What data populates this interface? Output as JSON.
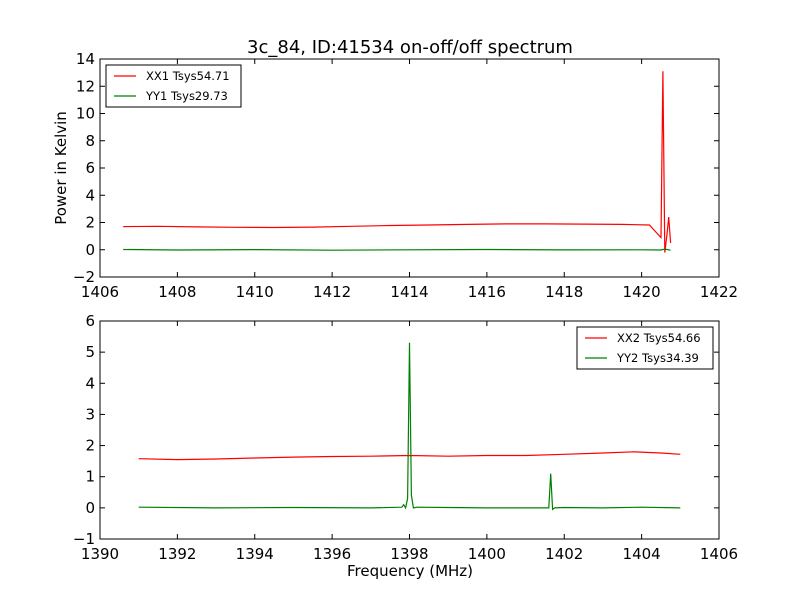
{
  "chart_data": [
    {
      "type": "line",
      "title": "3c_84, ID:41534 on-off/off spectrum",
      "xlabel": "",
      "ylabel": "Power in Kelvin",
      "xlim": [
        1406,
        1422
      ],
      "ylim": [
        -2,
        14
      ],
      "xticks": [
        1406,
        1408,
        1410,
        1412,
        1414,
        1416,
        1418,
        1420,
        1422
      ],
      "yticks": [
        -2,
        0,
        2,
        4,
        6,
        8,
        10,
        12,
        14
      ],
      "legend": "top-left",
      "grid": false,
      "series": [
        {
          "name": "XX1 Tsys54.71",
          "color": "#ff0000",
          "x": [
            1406.6,
            1407.5,
            1408.5,
            1409.5,
            1410.5,
            1411.5,
            1412.5,
            1413.5,
            1414.5,
            1415.5,
            1416.5,
            1417.5,
            1418.5,
            1419.5,
            1420.2,
            1420.4,
            1420.5,
            1420.55,
            1420.6,
            1420.65,
            1420.7,
            1420.75
          ],
          "y": [
            1.7,
            1.72,
            1.68,
            1.65,
            1.63,
            1.66,
            1.72,
            1.78,
            1.82,
            1.86,
            1.9,
            1.9,
            1.88,
            1.86,
            1.82,
            1.2,
            0.9,
            13.1,
            -0.2,
            1.0,
            2.4,
            0.5
          ]
        },
        {
          "name": "YY1 Tsys29.73",
          "color": "#008000",
          "x": [
            1406.6,
            1408,
            1410,
            1412,
            1414,
            1416,
            1418,
            1420,
            1420.5,
            1420.6,
            1420.75
          ],
          "y": [
            0.02,
            -0.02,
            0.01,
            -0.03,
            0.0,
            0.02,
            -0.01,
            0.0,
            -0.02,
            0.05,
            -0.03
          ]
        }
      ]
    },
    {
      "type": "line",
      "title": "",
      "xlabel": "Frequency (MHz)",
      "ylabel": "",
      "xlim": [
        1390,
        1406
      ],
      "ylim": [
        -1,
        6
      ],
      "xticks": [
        1390,
        1392,
        1394,
        1396,
        1398,
        1400,
        1402,
        1404,
        1406
      ],
      "yticks": [
        -1,
        0,
        1,
        2,
        3,
        4,
        5,
        6
      ],
      "legend": "top-right",
      "grid": false,
      "series": [
        {
          "name": "XX2 Tsys54.66",
          "color": "#ff0000",
          "x": [
            1391.0,
            1392.0,
            1393.0,
            1394.0,
            1395.0,
            1396.0,
            1397.0,
            1398.0,
            1399.0,
            1400.0,
            1401.0,
            1402.0,
            1403.0,
            1403.8,
            1404.5,
            1405.0
          ],
          "y": [
            1.58,
            1.55,
            1.57,
            1.6,
            1.63,
            1.65,
            1.66,
            1.68,
            1.66,
            1.68,
            1.68,
            1.72,
            1.76,
            1.8,
            1.76,
            1.72
          ]
        },
        {
          "name": "YY2 Tsys34.39",
          "color": "#008000",
          "x": [
            1391.0,
            1393.0,
            1395.0,
            1397.0,
            1397.8,
            1397.85,
            1397.9,
            1397.95,
            1398.0,
            1398.05,
            1398.1,
            1398.2,
            1399.0,
            1400.0,
            1401.0,
            1401.6,
            1401.65,
            1401.7,
            1401.75,
            1402.0,
            1403.0,
            1404.0,
            1405.0
          ],
          "y": [
            0.02,
            0.0,
            0.01,
            0.0,
            0.02,
            0.1,
            0.0,
            0.3,
            5.3,
            0.4,
            0.0,
            0.02,
            0.01,
            0.0,
            0.0,
            0.0,
            1.1,
            -0.05,
            0.0,
            0.01,
            0.0,
            0.02,
            0.0
          ]
        }
      ]
    }
  ]
}
